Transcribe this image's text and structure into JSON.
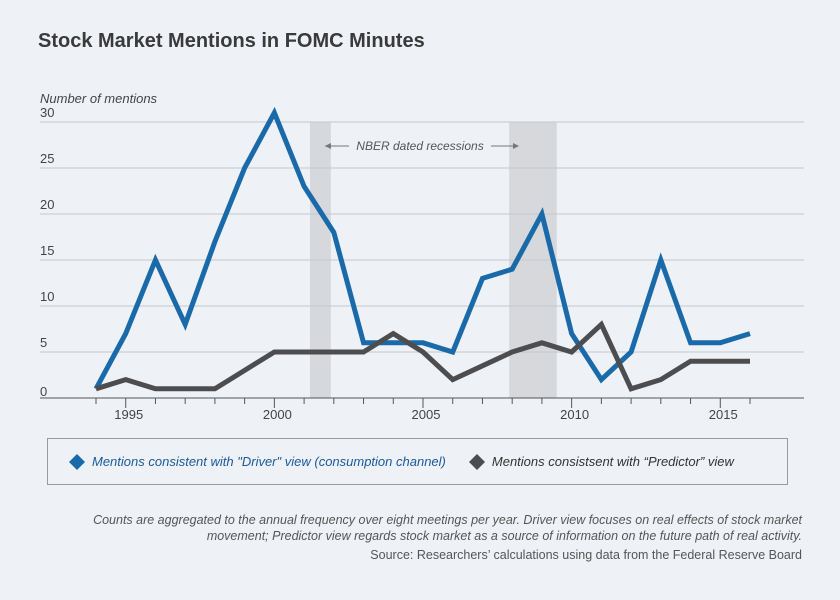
{
  "title": "Stock Market Mentions in FOMC Minutes",
  "chart_data": {
    "type": "line",
    "ylabel": "Number of mentions",
    "xlabel": "",
    "ylim": [
      0,
      30
    ],
    "xlim": [
      1993,
      2018
    ],
    "yticks": [
      0,
      5,
      10,
      15,
      20,
      25,
      30
    ],
    "xticks": [
      1995,
      2000,
      2005,
      2010,
      2015
    ],
    "grid": true,
    "x": [
      1994,
      1995,
      1996,
      1997,
      1998,
      1999,
      2000,
      2001,
      2002,
      2003,
      2004,
      2005,
      2006,
      2007,
      2008,
      2009,
      2010,
      2011,
      2012,
      2013,
      2014,
      2015,
      2016
    ],
    "series": [
      {
        "name": "Mentions consistent with \"Driver\" view (consumption channel)",
        "color": "#1a6aaa",
        "values": [
          1,
          7,
          15,
          8,
          17,
          25,
          31,
          23,
          18,
          6,
          6,
          6,
          5,
          13,
          14,
          20,
          7,
          2,
          5,
          15,
          6,
          6,
          7
        ]
      },
      {
        "name": "Mentions consistsent with “Predictor” view",
        "color": "#4d4d4f",
        "values": [
          1,
          2,
          1,
          1,
          1,
          3,
          5,
          5,
          5,
          5,
          7,
          5,
          2,
          3.5,
          5,
          6,
          5,
          8,
          1,
          2,
          4,
          4,
          4
        ]
      }
    ],
    "recessions": [
      [
        2001.2,
        2001.9
      ],
      [
        2007.9,
        2009.5
      ]
    ],
    "annotation": "NBER dated recessions"
  },
  "footnote": "Counts are aggregated to the annual frequency over eight meetings per year. Driver view focuses on real effects of stock market movement; Predictor view regards stock market as a source of information on the future path of real activity.",
  "source": "Source: Researchers’ calculations using data from the Federal Reserve Board"
}
